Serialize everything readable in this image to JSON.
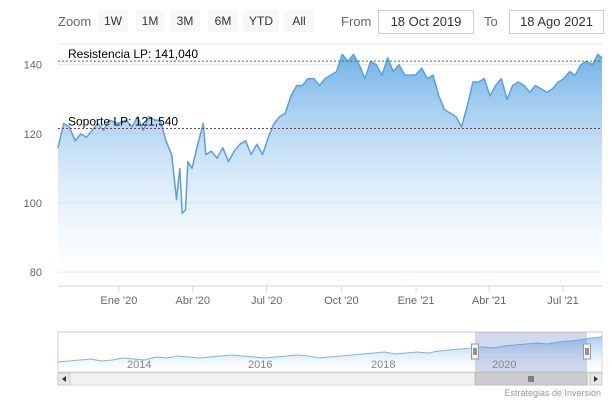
{
  "range_selector": {
    "zoom_label": "Zoom",
    "buttons": [
      "1W",
      "1M",
      "3M",
      "6M",
      "YTD",
      "All"
    ],
    "from_label": "From",
    "from_value": "18 Oct 2019",
    "to_label": "To",
    "to_value": "18 Ago 2021"
  },
  "credits": "Estrategias de Inversión",
  "colors": {
    "area_top": "#6aaee6",
    "area_bottom": "#ffffff",
    "line": "#5aa0e0",
    "resistance_line": "#2e8b2e",
    "support_line": "#cc2222"
  },
  "chart_data": {
    "type": "area",
    "ylim": [
      76,
      146
    ],
    "yticks": [
      80,
      100,
      120,
      140
    ],
    "xlim": [
      "2019-10-18",
      "2021-08-18"
    ],
    "xticks": [
      {
        "date": "2020-01-01",
        "label": "Ene '20"
      },
      {
        "date": "2020-04-01",
        "label": "Abr '20"
      },
      {
        "date": "2020-07-01",
        "label": "Jul '20"
      },
      {
        "date": "2020-10-01",
        "label": "Oct '20"
      },
      {
        "date": "2021-01-01",
        "label": "Ene '21"
      },
      {
        "date": "2021-04-01",
        "label": "Abr '21"
      },
      {
        "date": "2021-07-01",
        "label": "Jul '21"
      }
    ],
    "series": [
      {
        "points": [
          [
            "2019-10-18",
            116
          ],
          [
            "2019-10-25",
            123
          ],
          [
            "2019-11-01",
            122
          ],
          [
            "2019-11-08",
            118
          ],
          [
            "2019-11-15",
            120
          ],
          [
            "2019-11-22",
            119
          ],
          [
            "2019-11-29",
            121
          ],
          [
            "2019-12-06",
            123
          ],
          [
            "2019-12-13",
            121
          ],
          [
            "2019-12-20",
            124
          ],
          [
            "2019-12-31",
            123
          ],
          [
            "2020-01-10",
            124
          ],
          [
            "2020-01-17",
            122
          ],
          [
            "2020-01-24",
            125
          ],
          [
            "2020-01-31",
            121
          ],
          [
            "2020-02-07",
            125
          ],
          [
            "2020-02-14",
            124
          ],
          [
            "2020-02-21",
            124
          ],
          [
            "2020-02-28",
            118
          ],
          [
            "2020-03-06",
            114
          ],
          [
            "2020-03-12",
            101
          ],
          [
            "2020-03-16",
            110
          ],
          [
            "2020-03-19",
            97
          ],
          [
            "2020-03-23",
            98
          ],
          [
            "2020-03-26",
            112
          ],
          [
            "2020-03-31",
            110
          ],
          [
            "2020-04-07",
            117
          ],
          [
            "2020-04-14",
            123
          ],
          [
            "2020-04-17",
            114
          ],
          [
            "2020-04-24",
            115
          ],
          [
            "2020-05-01",
            113
          ],
          [
            "2020-05-08",
            116
          ],
          [
            "2020-05-15",
            112
          ],
          [
            "2020-05-22",
            115
          ],
          [
            "2020-05-29",
            117
          ],
          [
            "2020-06-05",
            118
          ],
          [
            "2020-06-12",
            114
          ],
          [
            "2020-06-19",
            117
          ],
          [
            "2020-06-26",
            114
          ],
          [
            "2020-07-03",
            119
          ],
          [
            "2020-07-10",
            123
          ],
          [
            "2020-07-17",
            125
          ],
          [
            "2020-07-24",
            126
          ],
          [
            "2020-07-31",
            131
          ],
          [
            "2020-08-07",
            134
          ],
          [
            "2020-08-14",
            134
          ],
          [
            "2020-08-21",
            136
          ],
          [
            "2020-08-28",
            136
          ],
          [
            "2020-09-04",
            134
          ],
          [
            "2020-09-11",
            136
          ],
          [
            "2020-09-18",
            137
          ],
          [
            "2020-09-25",
            138
          ],
          [
            "2020-10-02",
            143
          ],
          [
            "2020-10-09",
            141
          ],
          [
            "2020-10-16",
            143
          ],
          [
            "2020-10-23",
            140
          ],
          [
            "2020-10-30",
            136
          ],
          [
            "2020-11-06",
            141
          ],
          [
            "2020-11-13",
            140
          ],
          [
            "2020-11-20",
            137
          ],
          [
            "2020-11-27",
            142
          ],
          [
            "2020-12-04",
            138
          ],
          [
            "2020-12-11",
            140
          ],
          [
            "2020-12-18",
            137
          ],
          [
            "2020-12-31",
            137
          ],
          [
            "2021-01-08",
            139
          ],
          [
            "2021-01-15",
            136
          ],
          [
            "2021-01-22",
            137
          ],
          [
            "2021-01-29",
            131
          ],
          [
            "2021-02-05",
            127
          ],
          [
            "2021-02-12",
            126
          ],
          [
            "2021-02-19",
            125
          ],
          [
            "2021-02-26",
            122
          ],
          [
            "2021-03-05",
            128
          ],
          [
            "2021-03-12",
            135
          ],
          [
            "2021-03-19",
            135
          ],
          [
            "2021-03-26",
            136
          ],
          [
            "2021-04-02",
            131
          ],
          [
            "2021-04-09",
            134
          ],
          [
            "2021-04-16",
            136
          ],
          [
            "2021-04-23",
            130
          ],
          [
            "2021-04-30",
            134
          ],
          [
            "2021-05-07",
            135
          ],
          [
            "2021-05-14",
            134
          ],
          [
            "2021-05-21",
            132
          ],
          [
            "2021-05-28",
            134
          ],
          [
            "2021-06-04",
            133
          ],
          [
            "2021-06-11",
            132
          ],
          [
            "2021-06-18",
            133
          ],
          [
            "2021-06-25",
            135
          ],
          [
            "2021-07-02",
            136
          ],
          [
            "2021-07-09",
            138
          ],
          [
            "2021-07-16",
            137
          ],
          [
            "2021-07-23",
            140
          ],
          [
            "2021-07-30",
            141
          ],
          [
            "2021-08-06",
            140
          ],
          [
            "2021-08-13",
            143
          ],
          [
            "2021-08-18",
            142
          ]
        ]
      }
    ],
    "annotations": [
      {
        "label": "Resistencia LP: 141,040",
        "value": 141.04,
        "style": "dashed",
        "color": "#2e8b2e"
      },
      {
        "label": "Soporte LP: 121,540",
        "value": 121.54,
        "style": "dashed",
        "color": "#cc2222"
      }
    ],
    "grid": true,
    "navigator": {
      "labels": [
        "2014",
        "2016",
        "2018",
        "2020"
      ],
      "selected_range": [
        "2019-10-18",
        "2021-08-18"
      ]
    }
  }
}
